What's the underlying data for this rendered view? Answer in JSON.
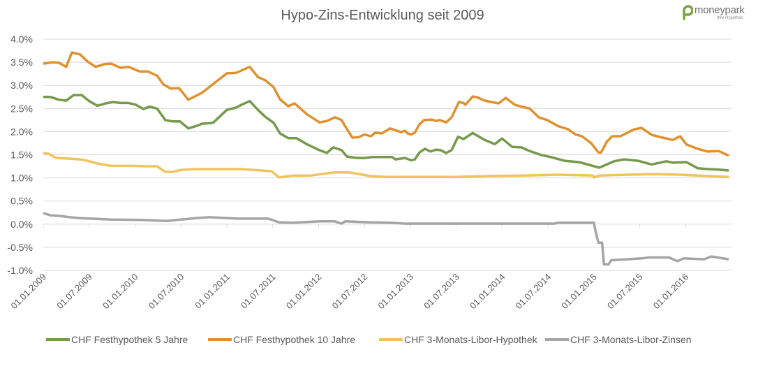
{
  "logo": {
    "name": "moneypark",
    "tagline": "Ihre Hypothek",
    "color": "#7aa23f"
  },
  "chart_data": {
    "type": "line",
    "title": "Hypo-Zins-Entwicklung seit 2009",
    "xlabel": "",
    "ylabel": "",
    "x_unit": "years since 01.01.2009",
    "xlim": [
      0,
      7.5
    ],
    "ylim": [
      -1.0,
      4.0
    ],
    "y_ticks": [
      "-1.0%",
      "-0.5%",
      "0.0%",
      "0.5%",
      "1.0%",
      "1.5%",
      "2.0%",
      "2.5%",
      "3.0%",
      "3.5%",
      "4.0%"
    ],
    "y_tick_values": [
      -1.0,
      -0.5,
      0.0,
      0.5,
      1.0,
      1.5,
      2.0,
      2.5,
      3.0,
      3.5,
      4.0
    ],
    "x_ticks": [
      "01.01.2009",
      "01.07.2009",
      "01.01.2010",
      "01.07.2010",
      "01.01.2011",
      "01.07.2011",
      "01.01.2012",
      "01.07.2012",
      "01.01.2013",
      "01.07.2013",
      "01.01.2014",
      "01.07.2014",
      "01.01.2015",
      "01.07.2015",
      "01.01.2016"
    ],
    "x_tick_values": [
      0,
      0.5,
      1,
      1.5,
      2,
      2.5,
      3,
      3.5,
      4,
      4.5,
      5,
      5.5,
      6,
      6.5,
      7
    ],
    "grid": "horizontal",
    "legend_position": "bottom",
    "series": [
      {
        "name": "CHF Festhypothek 5 Jahre",
        "color": "#759a4c",
        "points": [
          [
            0,
            2.75
          ],
          [
            0.08,
            2.75
          ],
          [
            0.17,
            2.69
          ],
          [
            0.25,
            2.67
          ],
          [
            0.33,
            2.79
          ],
          [
            0.42,
            2.79
          ],
          [
            0.5,
            2.66
          ],
          [
            0.59,
            2.56
          ],
          [
            0.68,
            2.61
          ],
          [
            0.76,
            2.64
          ],
          [
            0.84,
            2.62
          ],
          [
            0.93,
            2.62
          ],
          [
            1.01,
            2.58
          ],
          [
            1.09,
            2.49
          ],
          [
            1.16,
            2.54
          ],
          [
            1.24,
            2.5
          ],
          [
            1.33,
            2.25
          ],
          [
            1.41,
            2.22
          ],
          [
            1.49,
            2.22
          ],
          [
            1.58,
            2.07
          ],
          [
            1.68,
            2.13
          ],
          [
            1.73,
            2.17
          ],
          [
            1.85,
            2.19
          ],
          [
            2.0,
            2.47
          ],
          [
            2.1,
            2.52
          ],
          [
            2.17,
            2.59
          ],
          [
            2.25,
            2.66
          ],
          [
            2.34,
            2.47
          ],
          [
            2.42,
            2.32
          ],
          [
            2.51,
            2.19
          ],
          [
            2.58,
            1.96
          ],
          [
            2.67,
            1.86
          ],
          [
            2.76,
            1.86
          ],
          [
            2.87,
            1.73
          ],
          [
            3.01,
            1.6
          ],
          [
            3.09,
            1.54
          ],
          [
            3.16,
            1.66
          ],
          [
            3.25,
            1.6
          ],
          [
            3.31,
            1.46
          ],
          [
            3.42,
            1.43
          ],
          [
            3.5,
            1.43
          ],
          [
            3.59,
            1.45
          ],
          [
            3.71,
            1.45
          ],
          [
            3.8,
            1.45
          ],
          [
            3.84,
            1.4
          ],
          [
            3.94,
            1.43
          ],
          [
            4.01,
            1.38
          ],
          [
            4.05,
            1.4
          ],
          [
            4.1,
            1.55
          ],
          [
            4.16,
            1.63
          ],
          [
            4.22,
            1.57
          ],
          [
            4.28,
            1.61
          ],
          [
            4.33,
            1.6
          ],
          [
            4.39,
            1.54
          ],
          [
            4.45,
            1.6
          ],
          [
            4.52,
            1.89
          ],
          [
            4.58,
            1.84
          ],
          [
            4.68,
            1.97
          ],
          [
            4.81,
            1.82
          ],
          [
            4.92,
            1.73
          ],
          [
            5.0,
            1.85
          ],
          [
            5.11,
            1.67
          ],
          [
            5.21,
            1.66
          ],
          [
            5.3,
            1.58
          ],
          [
            5.42,
            1.5
          ],
          [
            5.53,
            1.45
          ],
          [
            5.68,
            1.37
          ],
          [
            5.84,
            1.34
          ],
          [
            6.06,
            1.22
          ],
          [
            6.22,
            1.36
          ],
          [
            6.33,
            1.4
          ],
          [
            6.48,
            1.37
          ],
          [
            6.63,
            1.29
          ],
          [
            6.79,
            1.36
          ],
          [
            6.86,
            1.33
          ],
          [
            7.01,
            1.34
          ],
          [
            7.13,
            1.21
          ],
          [
            7.24,
            1.19
          ],
          [
            7.36,
            1.18
          ],
          [
            7.47,
            1.16
          ]
        ]
      },
      {
        "name": "CHF Festhypothek 10 Jahre",
        "color": "#e0912f",
        "points": [
          [
            0,
            3.47
          ],
          [
            0.1,
            3.5
          ],
          [
            0.17,
            3.49
          ],
          [
            0.25,
            3.4
          ],
          [
            0.31,
            3.71
          ],
          [
            0.4,
            3.67
          ],
          [
            0.48,
            3.52
          ],
          [
            0.57,
            3.4
          ],
          [
            0.67,
            3.46
          ],
          [
            0.74,
            3.47
          ],
          [
            0.84,
            3.38
          ],
          [
            0.93,
            3.4
          ],
          [
            1.05,
            3.3
          ],
          [
            1.14,
            3.3
          ],
          [
            1.24,
            3.21
          ],
          [
            1.31,
            3.02
          ],
          [
            1.39,
            2.93
          ],
          [
            1.48,
            2.94
          ],
          [
            1.58,
            2.69
          ],
          [
            1.73,
            2.84
          ],
          [
            2.0,
            3.26
          ],
          [
            2.1,
            3.27
          ],
          [
            2.25,
            3.4
          ],
          [
            2.34,
            3.18
          ],
          [
            2.42,
            3.11
          ],
          [
            2.51,
            2.96
          ],
          [
            2.58,
            2.7
          ],
          [
            2.67,
            2.55
          ],
          [
            2.74,
            2.61
          ],
          [
            2.87,
            2.38
          ],
          [
            3.01,
            2.2
          ],
          [
            3.09,
            2.23
          ],
          [
            3.18,
            2.31
          ],
          [
            3.25,
            2.25
          ],
          [
            3.31,
            2.05
          ],
          [
            3.37,
            1.87
          ],
          [
            3.44,
            1.88
          ],
          [
            3.5,
            1.94
          ],
          [
            3.57,
            1.9
          ],
          [
            3.62,
            1.98
          ],
          [
            3.69,
            1.96
          ],
          [
            3.78,
            2.07
          ],
          [
            3.9,
            1.99
          ],
          [
            3.94,
            2.02
          ],
          [
            3.97,
            1.96
          ],
          [
            4.01,
            1.94
          ],
          [
            4.05,
            1.98
          ],
          [
            4.1,
            2.16
          ],
          [
            4.15,
            2.25
          ],
          [
            4.24,
            2.26
          ],
          [
            4.28,
            2.23
          ],
          [
            4.32,
            2.25
          ],
          [
            4.39,
            2.2
          ],
          [
            4.45,
            2.31
          ],
          [
            4.53,
            2.64
          ],
          [
            4.58,
            2.62
          ],
          [
            4.6,
            2.58
          ],
          [
            4.68,
            2.76
          ],
          [
            4.73,
            2.74
          ],
          [
            4.81,
            2.67
          ],
          [
            4.96,
            2.61
          ],
          [
            5.04,
            2.73
          ],
          [
            5.14,
            2.58
          ],
          [
            5.23,
            2.53
          ],
          [
            5.3,
            2.5
          ],
          [
            5.4,
            2.31
          ],
          [
            5.49,
            2.25
          ],
          [
            5.61,
            2.12
          ],
          [
            5.72,
            2.05
          ],
          [
            5.8,
            1.94
          ],
          [
            5.87,
            1.9
          ],
          [
            5.97,
            1.75
          ],
          [
            6.05,
            1.55
          ],
          [
            6.08,
            1.55
          ],
          [
            6.14,
            1.78
          ],
          [
            6.2,
            1.9
          ],
          [
            6.29,
            1.9
          ],
          [
            6.37,
            1.98
          ],
          [
            6.44,
            2.05
          ],
          [
            6.52,
            2.08
          ],
          [
            6.63,
            1.93
          ],
          [
            6.75,
            1.87
          ],
          [
            6.86,
            1.82
          ],
          [
            6.94,
            1.9
          ],
          [
            7.01,
            1.72
          ],
          [
            7.13,
            1.63
          ],
          [
            7.24,
            1.57
          ],
          [
            7.36,
            1.58
          ],
          [
            7.47,
            1.48
          ]
        ]
      },
      {
        "name": "CHF 3-Monats-Libor-Hypothek",
        "color": "#f1c35f",
        "points": [
          [
            0,
            1.54
          ],
          [
            0.06,
            1.52
          ],
          [
            0.14,
            1.43
          ],
          [
            0.25,
            1.42
          ],
          [
            0.4,
            1.4
          ],
          [
            0.48,
            1.37
          ],
          [
            0.59,
            1.31
          ],
          [
            0.74,
            1.26
          ],
          [
            0.97,
            1.26
          ],
          [
            1.12,
            1.25
          ],
          [
            1.24,
            1.25
          ],
          [
            1.33,
            1.13
          ],
          [
            1.41,
            1.13
          ],
          [
            1.5,
            1.17
          ],
          [
            1.66,
            1.19
          ],
          [
            2.15,
            1.19
          ],
          [
            2.38,
            1.16
          ],
          [
            2.49,
            1.14
          ],
          [
            2.57,
            1.01
          ],
          [
            2.72,
            1.05
          ],
          [
            2.91,
            1.05
          ],
          [
            3.02,
            1.08
          ],
          [
            3.18,
            1.12
          ],
          [
            3.33,
            1.12
          ],
          [
            3.48,
            1.07
          ],
          [
            3.56,
            1.04
          ],
          [
            3.75,
            1.02
          ],
          [
            4.47,
            1.02
          ],
          [
            4.85,
            1.04
          ],
          [
            5.23,
            1.05
          ],
          [
            5.61,
            1.07
          ],
          [
            5.99,
            1.05
          ],
          [
            6.0,
            1.01
          ],
          [
            6.06,
            1.05
          ],
          [
            6.37,
            1.07
          ],
          [
            6.67,
            1.08
          ],
          [
            6.94,
            1.07
          ],
          [
            7.13,
            1.05
          ],
          [
            7.47,
            1.02
          ]
        ]
      },
      {
        "name": "CHF 3-Monats-Libor-Zinsen",
        "color": "#a5a5a5",
        "points": [
          [
            0,
            0.24
          ],
          [
            0.08,
            0.19
          ],
          [
            0.17,
            0.18
          ],
          [
            0.29,
            0.15
          ],
          [
            0.4,
            0.13
          ],
          [
            0.52,
            0.12
          ],
          [
            0.74,
            0.1
          ],
          [
            1.05,
            0.09
          ],
          [
            1.35,
            0.07
          ],
          [
            1.5,
            0.1
          ],
          [
            1.66,
            0.13
          ],
          [
            1.81,
            0.15
          ],
          [
            2.11,
            0.12
          ],
          [
            2.45,
            0.12
          ],
          [
            2.57,
            0.04
          ],
          [
            2.72,
            0.03
          ],
          [
            3.02,
            0.06
          ],
          [
            3.18,
            0.06
          ],
          [
            3.25,
            0.01
          ],
          [
            3.29,
            0.06
          ],
          [
            3.56,
            0.04
          ],
          [
            3.78,
            0.03
          ],
          [
            3.94,
            0.01
          ],
          [
            5.57,
            0.01
          ],
          [
            5.61,
            0.03
          ],
          [
            6.0,
            0.03
          ],
          [
            6.03,
            -0.25
          ],
          [
            6.05,
            -0.4
          ],
          [
            6.09,
            -0.4
          ],
          [
            6.11,
            -0.87
          ],
          [
            6.16,
            -0.87
          ],
          [
            6.19,
            -0.78
          ],
          [
            6.37,
            -0.76
          ],
          [
            6.52,
            -0.74
          ],
          [
            6.6,
            -0.72
          ],
          [
            6.82,
            -0.72
          ],
          [
            6.91,
            -0.8
          ],
          [
            6.98,
            -0.74
          ],
          [
            7.2,
            -0.76
          ],
          [
            7.28,
            -0.7
          ],
          [
            7.47,
            -0.76
          ]
        ]
      }
    ]
  }
}
